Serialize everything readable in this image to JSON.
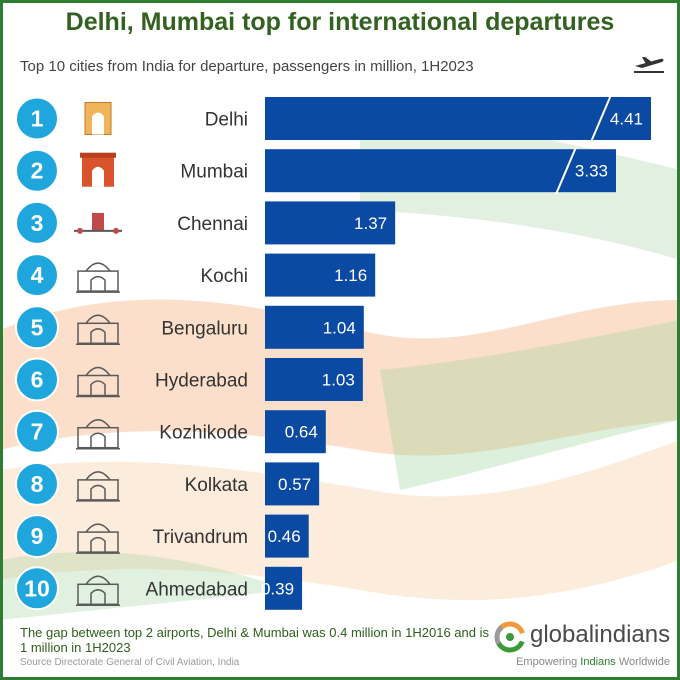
{
  "header": {
    "title": "Delhi, Mumbai top for international departures",
    "subtitle": "Top 10 cities from India for departure, passengers in million, 1H2023"
  },
  "colors": {
    "bar": "#0b4aa3",
    "rank_circle": "#1fa6dc",
    "title": "#33611f",
    "saffron": "#f29a5c",
    "green": "#8bc48a",
    "frame": "#2e7d32"
  },
  "chart_data": {
    "type": "bar",
    "orientation": "horizontal",
    "title": "Top 10 cities from India for departure, passengers in million, 1H2023",
    "ranks": [
      "1",
      "2",
      "3",
      "4",
      "5",
      "6",
      "7",
      "8",
      "9",
      "10"
    ],
    "categories": [
      "Delhi",
      "Mumbai",
      "Chennai",
      "Kochi",
      "Bengaluru",
      "Hyderabad",
      "Kozhikode",
      "Kolkata",
      "Trivandrum",
      "Ahmedabad"
    ],
    "values": [
      4.41,
      3.33,
      1.37,
      1.16,
      1.04,
      1.03,
      0.64,
      0.57,
      0.46,
      0.39
    ],
    "axis_break": [
      true,
      true,
      false,
      false,
      false,
      false,
      false,
      false,
      false,
      false
    ],
    "landmark_icons": [
      "india-gate-icon",
      "gateway-of-india-icon",
      "central-station-icon",
      "chinese-fishing-nets-icon",
      "vidhana-soudha-icon",
      "charminar-icon",
      "kozhikode-gate-icon",
      "victoria-memorial-icon",
      "padmanabhaswamy-temple-icon",
      "ahmedabad-mosque-icon"
    ],
    "xlabel": "",
    "ylabel": "",
    "grid": false,
    "legend": "none"
  },
  "footer": {
    "note": "The gap between top 2 airports,  Delhi & Mumbai was 0.4 million in 1H2016 and is 1 million in 1H2023",
    "source": "Source Directorate General of Civil Aviation, India"
  },
  "logo": {
    "name": "globalindians",
    "tagline_pre": "Empowering ",
    "tagline_highlight": "Indians",
    "tagline_post": " Worldwide",
    "icon": "globalindians-logo-icon"
  },
  "decor": {
    "plane_icon": "airplane-takeoff-icon"
  }
}
